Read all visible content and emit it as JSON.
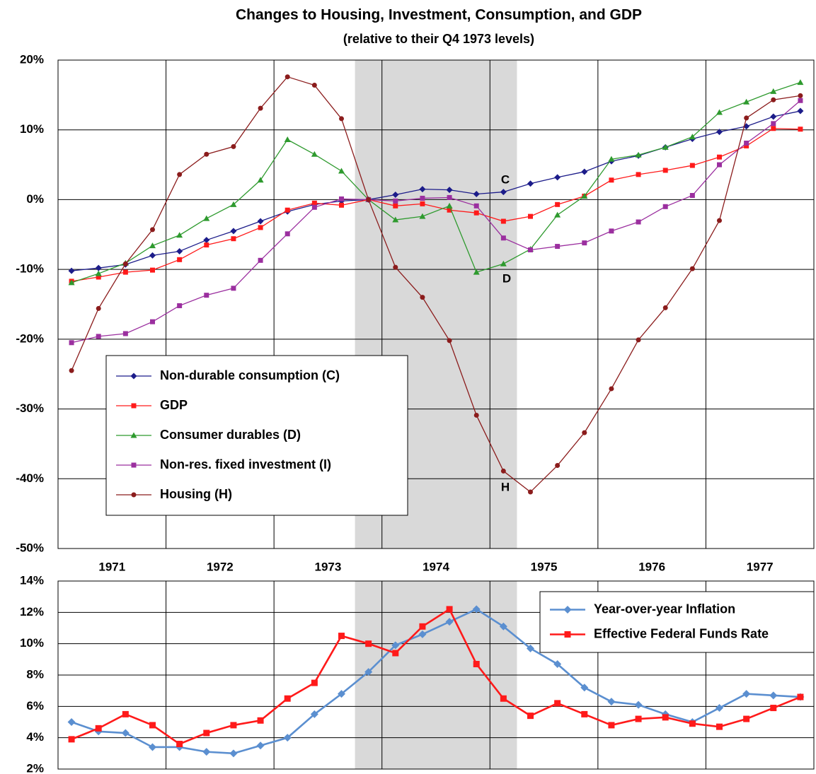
{
  "chart_data": [
    {
      "type": "line",
      "title": "Changes to Housing, Investment, Consumption, and GDP",
      "subtitle": "(relative to their Q4 1973 levels)",
      "x": [
        1971.125,
        1971.375,
        1971.625,
        1971.875,
        1972.125,
        1972.375,
        1972.625,
        1972.875,
        1973.125,
        1973.375,
        1973.625,
        1973.875,
        1974.125,
        1974.375,
        1974.625,
        1974.875,
        1975.125,
        1975.375,
        1975.625,
        1975.875,
        1976.125,
        1976.375,
        1976.625,
        1976.875,
        1977.125,
        1977.375,
        1977.625,
        1977.875
      ],
      "xlim": [
        1971,
        1978
      ],
      "xticks": [
        {
          "value": 1971.5,
          "label": "1971"
        },
        {
          "value": 1972.5,
          "label": "1972"
        },
        {
          "value": 1973.5,
          "label": "1973"
        },
        {
          "value": 1974.5,
          "label": "1974"
        },
        {
          "value": 1975.5,
          "label": "1975"
        },
        {
          "value": 1976.5,
          "label": "1976"
        },
        {
          "value": 1977.5,
          "label": "1977"
        }
      ],
      "xgrid": [
        1972,
        1973,
        1974,
        1975,
        1976,
        1977
      ],
      "shading": [
        1973.75,
        1975.25
      ],
      "ylim": [
        -50,
        20
      ],
      "yticks": [
        {
          "value": -50,
          "label": "-50%"
        },
        {
          "value": -40,
          "label": "-40%"
        },
        {
          "value": -30,
          "label": "-30%"
        },
        {
          "value": -20,
          "label": "-20%"
        },
        {
          "value": -10,
          "label": "-10%"
        },
        {
          "value": 0,
          "label": "0%"
        },
        {
          "value": 10,
          "label": "10%"
        },
        {
          "value": 20,
          "label": "20%"
        }
      ],
      "grid": true,
      "legend": "lower left",
      "annotations": [
        "C",
        "D",
        "H"
      ],
      "series": [
        {
          "name": "Non-durable  consumption  (C)",
          "color": "#1c1c8a",
          "marker": "diamond",
          "values": [
            -10.2,
            -9.8,
            -9.3,
            -8.0,
            -7.4,
            -5.8,
            -4.5,
            -3.1,
            -1.7,
            -0.7,
            -0.2,
            0,
            0.7,
            1.5,
            1.4,
            0.8,
            1.1,
            2.3,
            3.2,
            4.0,
            5.5,
            6.3,
            7.5,
            8.7,
            9.7,
            10.5,
            11.9,
            12.7
          ]
        },
        {
          "name": "GDP",
          "color": "#ff1a1a",
          "marker": "square",
          "values": [
            -11.7,
            -11.1,
            -10.4,
            -10.1,
            -8.6,
            -6.5,
            -5.6,
            -4.0,
            -1.5,
            -0.5,
            -0.8,
            0,
            -0.9,
            -0.6,
            -1.5,
            -1.9,
            -3.1,
            -2.4,
            -0.7,
            0.5,
            2.8,
            3.6,
            4.2,
            4.9,
            6.1,
            7.7,
            10.2,
            10.1
          ]
        },
        {
          "name": "Consumer  durables  (D)",
          "color": "#2e9a2e",
          "marker": "triangle",
          "values": [
            -11.9,
            -10.6,
            -9.1,
            -6.6,
            -5.1,
            -2.7,
            -0.7,
            2.8,
            8.6,
            6.5,
            4.1,
            0,
            -2.9,
            -2.4,
            -0.9,
            -10.4,
            -9.2,
            -7.1,
            -2.2,
            0.5,
            5.8,
            6.4,
            7.5,
            9.0,
            12.5,
            14.0,
            15.5,
            16.8
          ]
        },
        {
          "name": "Non-res.  fixed  investment  (I)",
          "color": "#9b2f9f",
          "marker": "square",
          "values": [
            -20.5,
            -19.6,
            -19.2,
            -17.5,
            -15.2,
            -13.7,
            -12.7,
            -8.7,
            -4.9,
            -1.1,
            0.1,
            0,
            -0.2,
            0.2,
            0.3,
            -0.9,
            -5.5,
            -7.2,
            -6.7,
            -6.2,
            -4.5,
            -3.2,
            -1.0,
            0.6,
            5.0,
            8.1,
            10.9,
            14.2
          ]
        },
        {
          "name": "Housing  (H)",
          "color": "#8b1c1c",
          "marker": "circle",
          "values": [
            -24.5,
            -15.6,
            -9.2,
            -4.3,
            3.6,
            6.5,
            7.6,
            13.1,
            17.6,
            16.4,
            11.6,
            0,
            -9.7,
            -14.0,
            -20.2,
            -30.9,
            -38.9,
            -41.9,
            -38.1,
            -33.4,
            -27.1,
            -20.1,
            -15.5,
            -9.9,
            -3.0,
            11.7,
            14.3,
            14.9
          ]
        }
      ]
    },
    {
      "type": "line",
      "x": [
        1971.125,
        1971.375,
        1971.625,
        1971.875,
        1972.125,
        1972.375,
        1972.625,
        1972.875,
        1973.125,
        1973.375,
        1973.625,
        1973.875,
        1974.125,
        1974.375,
        1974.625,
        1974.875,
        1975.125,
        1975.375,
        1975.625,
        1975.875,
        1976.125,
        1976.375,
        1976.625,
        1976.875,
        1977.125,
        1977.375,
        1977.625,
        1977.875
      ],
      "xlim": [
        1971,
        1978
      ],
      "xgrid": [
        1972,
        1973,
        1974,
        1975,
        1976,
        1977
      ],
      "shading": [
        1973.75,
        1975.25
      ],
      "ylim": [
        2,
        14
      ],
      "yticks": [
        {
          "value": 2,
          "label": "2%"
        },
        {
          "value": 4,
          "label": "4%"
        },
        {
          "value": 6,
          "label": "6%"
        },
        {
          "value": 8,
          "label": "8%"
        },
        {
          "value": 10,
          "label": "10%"
        },
        {
          "value": 12,
          "label": "12%"
        },
        {
          "value": 14,
          "label": "14%"
        }
      ],
      "grid": true,
      "legend": "upper right",
      "series": [
        {
          "name": "Year-over-year  Inflation",
          "color": "#5b8fd0",
          "marker": "diamond",
          "values": [
            5.0,
            4.4,
            4.3,
            3.4,
            3.4,
            3.1,
            3.0,
            3.5,
            4.0,
            5.5,
            6.8,
            8.2,
            9.9,
            10.6,
            11.4,
            12.2,
            11.1,
            9.7,
            8.7,
            7.2,
            6.3,
            6.1,
            5.5,
            5.0,
            5.9,
            6.8,
            6.7,
            6.6
          ]
        },
        {
          "name": "Effective  Federal  Funds  Rate",
          "color": "#ff1a1a",
          "marker": "square",
          "values": [
            3.9,
            4.6,
            5.5,
            4.8,
            3.6,
            4.3,
            4.8,
            5.1,
            6.5,
            7.5,
            10.5,
            10.0,
            9.4,
            11.1,
            12.2,
            8.7,
            6.5,
            5.4,
            6.2,
            5.5,
            4.8,
            5.2,
            5.3,
            4.9,
            4.7,
            5.2,
            5.9,
            6.6
          ]
        }
      ]
    }
  ]
}
